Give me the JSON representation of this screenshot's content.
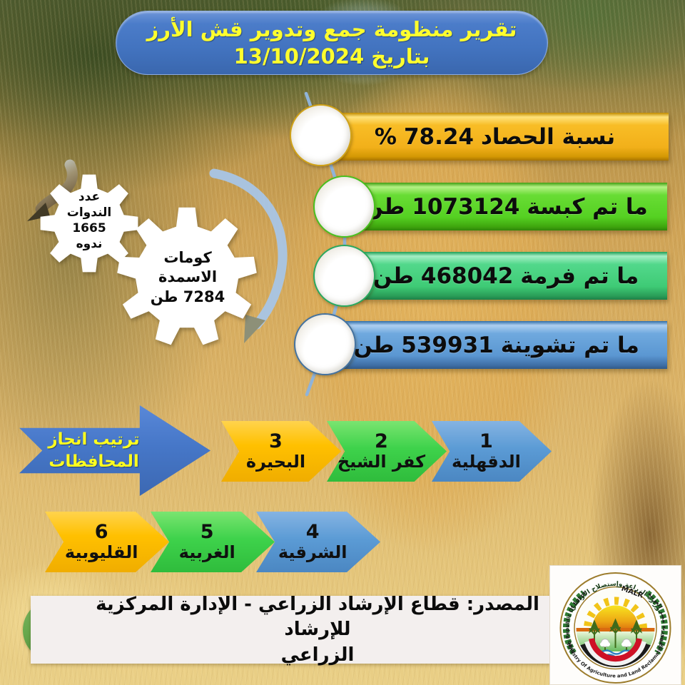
{
  "title": {
    "line1": "تقرير منظومة جمع وتدوير قش الأرز",
    "line2": "بتاريخ 13/10/2024"
  },
  "stats": [
    {
      "label": "نسبة الحصاد",
      "value": "78.24",
      "unit": "%"
    },
    {
      "label": "ما تم كبسة",
      "value": "1073124",
      "unit": "طن"
    },
    {
      "label": "ما تم فرمة",
      "value": "468042",
      "unit": "طن"
    },
    {
      "label": "ما تم تشوينة",
      "value": "539931",
      "unit": "طن"
    }
  ],
  "gears": {
    "seminars": {
      "line1": "عدد",
      "line2": "الندوات",
      "line3": "1665",
      "line4": "ندوه"
    },
    "compost": {
      "line1": "كومات",
      "line2": "الاسمدة",
      "line3": "7284 طن"
    }
  },
  "ranking": {
    "header": {
      "line1": "ترتيب انجاز",
      "line2": "المحافظات"
    },
    "row1": [
      {
        "rank": "3",
        "name": "البحيرة"
      },
      {
        "rank": "2",
        "name": "كفر الشيخ"
      },
      {
        "rank": "1",
        "name": "الدقهلية"
      }
    ],
    "row2": [
      {
        "rank": "6",
        "name": "القليوبية"
      },
      {
        "rank": "5",
        "name": "الغربية"
      },
      {
        "rank": "4",
        "name": "الشرقية"
      }
    ]
  },
  "source": {
    "line1": "المصدر: قطاع الإرشاد الزراعي - الإدارة المركزية للإرشاد",
    "line2": "الزراعي"
  },
  "logo": {
    "top_arabic": "وزارة الزراعة وإستصلاح الأراضي",
    "malr": "MALR",
    "left_english": "Arab Republic Of Egypt",
    "right_arabic": "جمهورية مصر العربية",
    "bottom_english": "Ministry Of Agriculture and Land Reclamation"
  },
  "colors": {
    "title_blue": "#4273BF",
    "title_text": "#FFFF2E",
    "harvest_gold": "#F2B01A",
    "baled_green": "#55D122",
    "chopped_seagreen": "#3FCB76",
    "stored_blue": "#5B97D2",
    "chevron_yellow": "#FFC000",
    "chevron_green": "#3ED24B",
    "chevron_blue": "#5B9BD5",
    "header_arrow_blue": "#4677C8",
    "source_green": "#67A84C"
  }
}
